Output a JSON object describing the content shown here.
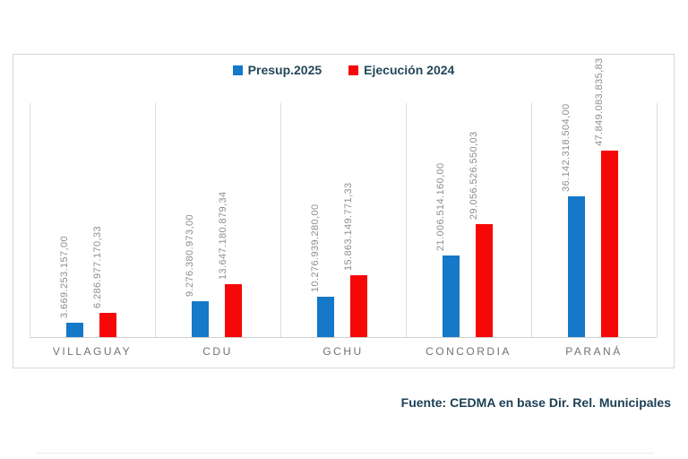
{
  "chart_data": {
    "type": "bar",
    "categories": [
      "VILLAGUAY",
      "CDU",
      "GCHU",
      "CONCORDIA",
      "PARANÁ"
    ],
    "series": [
      {
        "name": "Presup.2025",
        "color": "#1578C8",
        "values": [
          3669253157.0,
          9276380973.0,
          10276939280.0,
          21006514160.0,
          36142318504.0
        ],
        "labels": [
          "3.669.253.157,00",
          "9.276.380.973,00",
          "10.276.939.280,00",
          "21.006.514.160,00",
          "36.142.318.504,00"
        ]
      },
      {
        "name": "Ejecución 2024",
        "color": "#F70808",
        "values": [
          6286977170.33,
          13647180879.34,
          15863149771.33,
          29056526550.03,
          47849083835.83
        ],
        "labels": [
          "6.286.977.170,33",
          "13.647.180.879,34",
          "15.863.149.771,33",
          "29.056.526.550,03",
          "47.849.083.835,83"
        ]
      }
    ],
    "title": "",
    "xlabel": "",
    "ylabel": "",
    "ylim": [
      0,
      60000000000
    ],
    "grid": "vertical category separators only",
    "legend_position": "top-center",
    "value_label_color": "#8a8f93",
    "category_label_color": "#6d7377"
  },
  "footer": {
    "source": "Fuente: CEDMA en base Dir. Rel. Municipales"
  }
}
